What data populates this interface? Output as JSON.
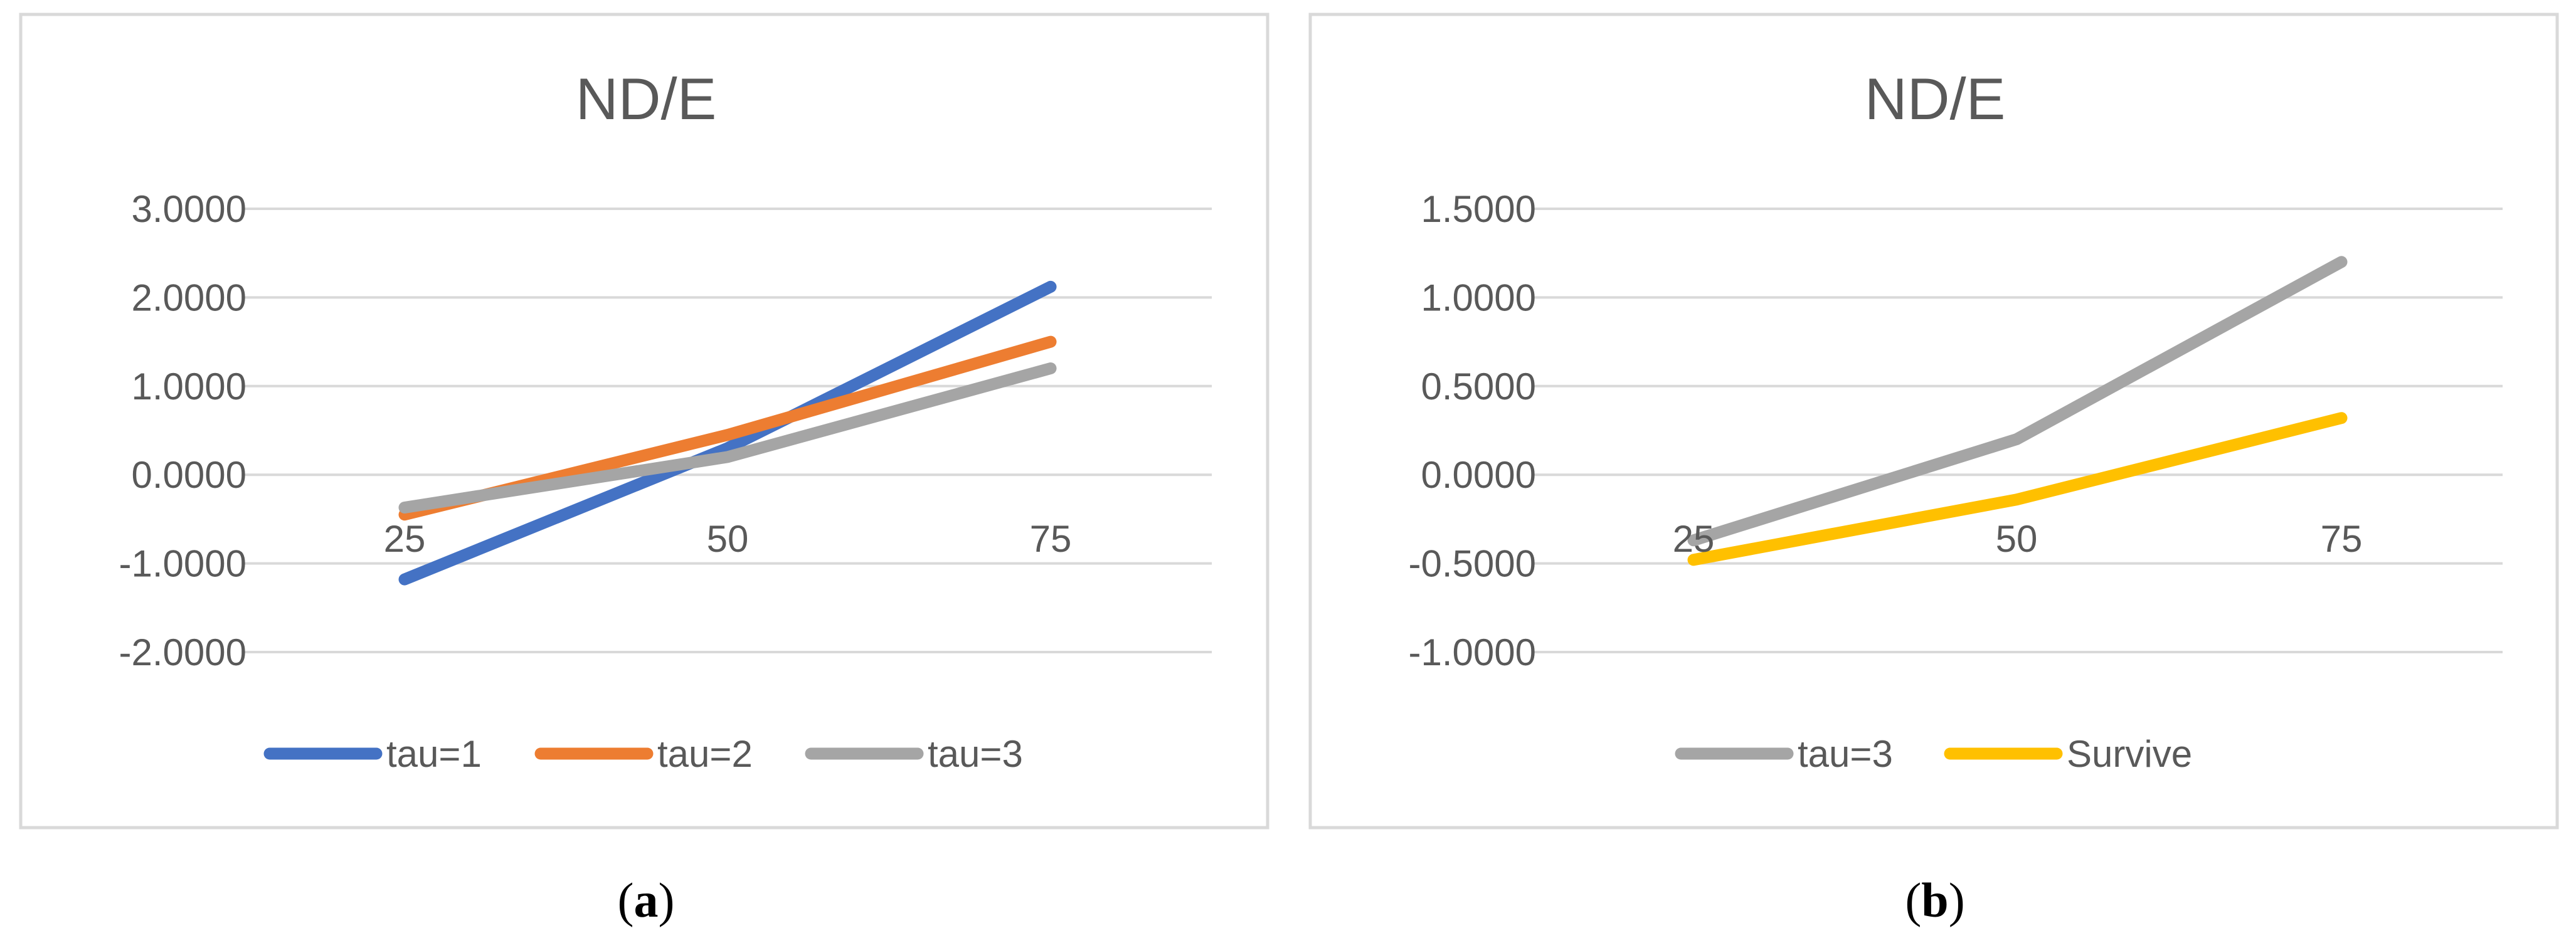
{
  "chart_data": [
    {
      "type": "line",
      "title": "ND/E",
      "caption_letter": "a",
      "categories": [
        "25",
        "50",
        "75"
      ],
      "ylim": [
        -2,
        3
      ],
      "yticks": [
        "3.0000",
        "2.0000",
        "1.0000",
        "0.0000",
        "-1.0000",
        "-2.0000"
      ],
      "grid": true,
      "legend_position": "bottom",
      "xlabel": "",
      "ylabel": "",
      "series": [
        {
          "name": "tau=1",
          "color": "#4472C4",
          "values": [
            -1.18,
            0.3,
            2.12
          ]
        },
        {
          "name": "tau=2",
          "color": "#ED7D31",
          "values": [
            -0.45,
            0.45,
            1.5
          ]
        },
        {
          "name": "tau=3",
          "color": "#A5A5A5",
          "values": [
            -0.37,
            0.2,
            1.2
          ]
        }
      ]
    },
    {
      "type": "line",
      "title": "ND/E",
      "caption_letter": "b",
      "categories": [
        "25",
        "50",
        "75"
      ],
      "ylim": [
        -1,
        1.5
      ],
      "yticks": [
        "1.5000",
        "1.0000",
        "0.5000",
        "0.0000",
        "-0.5000",
        "-1.0000"
      ],
      "grid": true,
      "legend_position": "bottom",
      "xlabel": "",
      "ylabel": "",
      "series": [
        {
          "name": "tau=3",
          "color": "#A5A5A5",
          "values": [
            -0.37,
            0.2,
            1.2
          ]
        },
        {
          "name": "Survive",
          "color": "#FFC000",
          "values": [
            -0.48,
            -0.14,
            0.32
          ]
        }
      ]
    }
  ]
}
